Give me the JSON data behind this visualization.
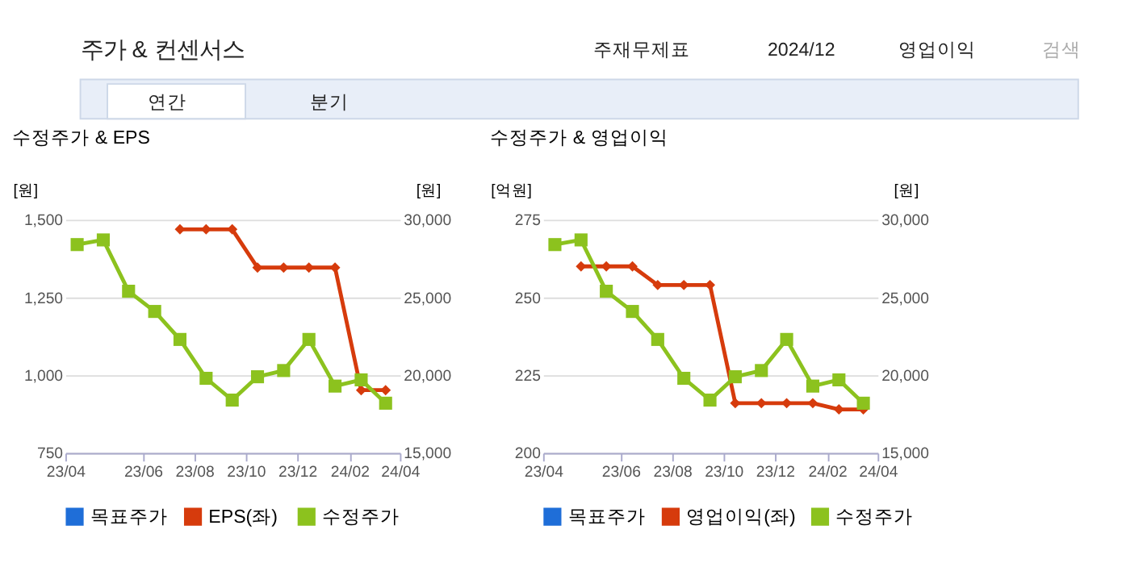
{
  "chart_data": [
    {
      "type": "other",
      "title": "주가 & 컨센서스",
      "annotations": [
        "주재무제표",
        "2024/12",
        "영업이익",
        "검색",
        "연간",
        "분기"
      ]
    },
    {
      "type": "line",
      "title": "수정주가 & EPS",
      "ylabel": "[원]",
      "y2label": "[원]",
      "x": [
        "2023-03-15",
        "2023-04-15",
        "2023-05-15",
        "2023-06-15",
        "2023-07-15",
        "2023-08-15",
        "2023-09-15",
        "2023-10-15",
        "2023-11-15",
        "2023-12-15",
        "2024-01-15",
        "2024-02-15",
        "2024-03-15"
      ],
      "xlim": [
        "2023-03-01",
        "2024-04-01"
      ],
      "xticks": [
        {
          "value": "2023-03-01",
          "label": "23/04"
        },
        {
          "value": "2023-06-01",
          "label": "23/06"
        },
        {
          "value": "2023-08-01",
          "label": "23/08"
        },
        {
          "value": "2023-10-01",
          "label": "23/10"
        },
        {
          "value": "2023-12-01",
          "label": "23/12"
        },
        {
          "value": "2024-02-01",
          "label": "24/02"
        },
        {
          "value": "2024-04-01",
          "label": "24/04"
        }
      ],
      "ylim": [
        750,
        1500
      ],
      "yticks": [
        {
          "value": 750,
          "label": "750"
        },
        {
          "value": 1000,
          "label": "1,000"
        },
        {
          "value": 1250,
          "label": "1,250"
        },
        {
          "value": 1500,
          "label": "1,500"
        }
      ],
      "y2lim": [
        15000,
        30000
      ],
      "y2ticks": [
        {
          "value": 15000,
          "label": "15,000"
        },
        {
          "value": 20000,
          "label": "20,000"
        },
        {
          "value": 25000,
          "label": "25,000"
        },
        {
          "value": 30000,
          "label": "30,000"
        }
      ],
      "grid": "y",
      "legend": "bottom",
      "series": [
        {
          "name": "목표주가",
          "color": "#1f6ed8",
          "marker": "square",
          "values": [
            null,
            null,
            null,
            null,
            null,
            null,
            null,
            null,
            null,
            null,
            null,
            null,
            null
          ]
        },
        {
          "name": "EPS(좌)",
          "color": "#d63b0c",
          "marker": "diamond",
          "values": [
            null,
            null,
            null,
            null,
            1469,
            1469,
            1469,
            1346,
            1346,
            1346,
            1346,
            952,
            952
          ]
        },
        {
          "name": "수정주가",
          "color": "#8cc21e",
          "marker": "square",
          "axis": "y2",
          "values": [
            28400,
            28700,
            25400,
            24100,
            22300,
            19800,
            18400,
            19900,
            20300,
            22300,
            19300,
            19700,
            18200
          ]
        }
      ]
    },
    {
      "type": "line",
      "title": "수정주가 & 영업이익",
      "ylabel": "[억원]",
      "y2label": "[원]",
      "x": [
        "2023-03-15",
        "2023-04-15",
        "2023-05-15",
        "2023-06-15",
        "2023-07-15",
        "2023-08-15",
        "2023-09-15",
        "2023-10-15",
        "2023-11-15",
        "2023-12-15",
        "2024-01-15",
        "2024-02-15",
        "2024-03-15"
      ],
      "xlim": [
        "2023-03-01",
        "2024-04-01"
      ],
      "xticks": [
        {
          "value": "2023-03-01",
          "label": "23/04"
        },
        {
          "value": "2023-06-01",
          "label": "23/06"
        },
        {
          "value": "2023-08-01",
          "label": "23/08"
        },
        {
          "value": "2023-10-01",
          "label": "23/10"
        },
        {
          "value": "2023-12-01",
          "label": "23/12"
        },
        {
          "value": "2024-02-01",
          "label": "24/02"
        },
        {
          "value": "2024-04-01",
          "label": "24/04"
        }
      ],
      "ylim": [
        200,
        275
      ],
      "yticks": [
        200,
        225,
        250,
        275
      ],
      "y2lim": [
        15000,
        30000
      ],
      "y2ticks": [
        {
          "value": 15000,
          "label": "15,000"
        },
        {
          "value": 20000,
          "label": "20,000"
        },
        {
          "value": 25000,
          "label": "25,000"
        },
        {
          "value": 30000,
          "label": "30,000"
        }
      ],
      "grid": "y",
      "legend": "bottom",
      "series": [
        {
          "name": "목표주가",
          "color": "#1f6ed8",
          "marker": "square",
          "values": [
            null,
            null,
            null,
            null,
            null,
            null,
            null,
            null,
            null,
            null,
            null,
            null,
            null
          ]
        },
        {
          "name": "영업이익(좌)",
          "color": "#d63b0c",
          "marker": "diamond",
          "values": [
            null,
            260,
            260,
            260,
            254,
            254,
            254,
            216,
            216,
            216,
            216,
            214,
            214
          ]
        },
        {
          "name": "수정주가",
          "color": "#8cc21e",
          "marker": "square",
          "axis": "y2",
          "values": [
            28400,
            28700,
            25400,
            24100,
            22300,
            19800,
            18400,
            19900,
            20300,
            22300,
            19300,
            19700,
            18200
          ]
        }
      ]
    }
  ]
}
